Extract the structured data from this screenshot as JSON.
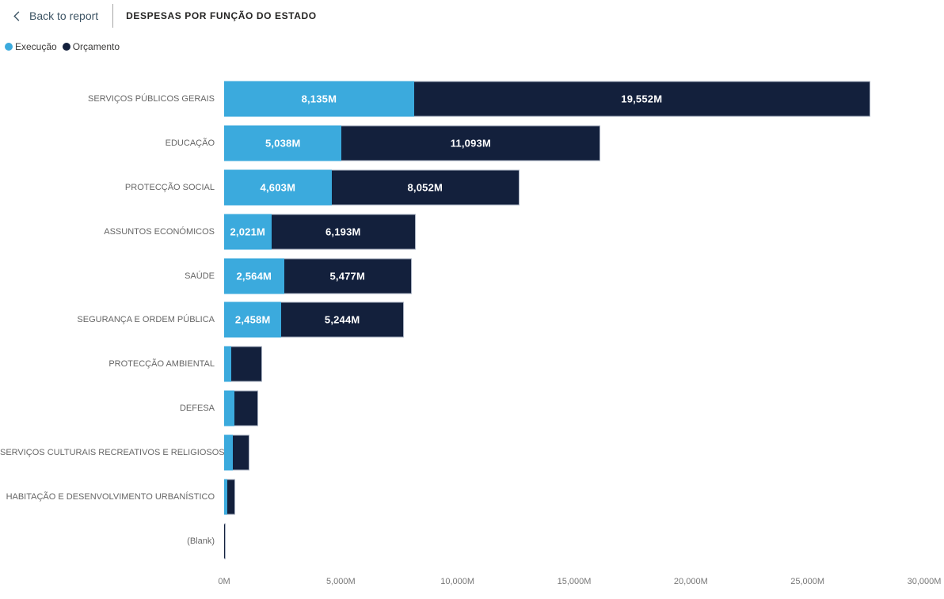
{
  "header": {
    "back_label": "Back to report",
    "title": "DESPESAS POR FUNÇÃO DO ESTADO"
  },
  "legend": [
    {
      "label": "Execução",
      "color": "#3BAADD"
    },
    {
      "label": "Orçamento",
      "color": "#13203C"
    }
  ],
  "colors": {
    "execucao": "#3BAADD",
    "orcamento": "#13203C",
    "bar_border": "#A9B2C2",
    "back_link": "#3E5565",
    "title_text": "#252423",
    "category_text": "#666666",
    "axis_text": "#777777"
  },
  "chart_data": {
    "type": "bar",
    "orientation": "horizontal",
    "stacked": true,
    "title": "DESPESAS POR FUNÇÃO DO ESTADO",
    "categories": [
      "SERVIÇOS PÚBLICOS GERAIS",
      "EDUCAÇÃO",
      "PROTECÇÃO SOCIAL",
      "ASSUNTOS ECONÓMICOS",
      "SAÚDE",
      "SEGURANÇA E ORDEM PÚBLICA",
      "PROTECÇÃO AMBIENTAL",
      "DEFESA",
      "SERVIÇOS CULTURAIS RECREATIVOS E RELIGIOSOS",
      "HABITAÇÃO E DESENVOLVIMENTO URBANÍSTICO",
      "(Blank)"
    ],
    "series": [
      {
        "name": "Execução",
        "color": "#3BAADD",
        "values": [
          8135,
          5038,
          4603,
          2021,
          2564,
          2458,
          320,
          430,
          370,
          135,
          0
        ],
        "data_labels": [
          "8,135M",
          "5,038M",
          "4,603M",
          "2,021M",
          "2,564M",
          "2,458M",
          null,
          null,
          null,
          null,
          null
        ]
      },
      {
        "name": "Orçamento",
        "color": "#13203C",
        "values": [
          19552,
          11093,
          8052,
          6193,
          5477,
          5244,
          1320,
          1040,
          710,
          340,
          80
        ],
        "data_labels": [
          "19,552M",
          "11,093M",
          "8,052M",
          "6,193M",
          "5,477M",
          "5,244M",
          null,
          null,
          null,
          null,
          null
        ]
      }
    ],
    "xlim": [
      0,
      30000
    ],
    "x_ticks": [
      "0M",
      "5,000M",
      "10,000M",
      "15,000M",
      "20,000M",
      "25,000M",
      "30,000M"
    ],
    "grid": false,
    "legend_position": "top-left",
    "value_suffix": "M"
  }
}
